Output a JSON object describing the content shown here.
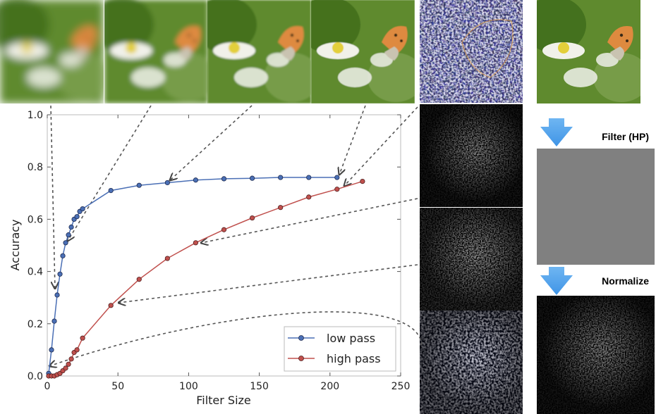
{
  "pipeline": {
    "step1_label": "Filter (HP)",
    "step2_label": "Normalize"
  },
  "chart_data": {
    "type": "line",
    "xlabel": "Filter Size",
    "ylabel": "Accuracy",
    "xlim": [
      0,
      250
    ],
    "ylim": [
      0.0,
      1.0
    ],
    "xticks": [
      "0",
      "50",
      "100",
      "150",
      "200",
      "250"
    ],
    "yticks": [
      "0.0",
      "0.2",
      "0.4",
      "0.6",
      "0.8",
      "1.0"
    ],
    "grid": false,
    "legend_position": "bottom-right",
    "series": [
      {
        "name": "low pass",
        "color": "#4a6fb5",
        "x": [
          1,
          3,
          5,
          7,
          9,
          11,
          13,
          15,
          17,
          19,
          21,
          23,
          25,
          45,
          65,
          85,
          105,
          125,
          145,
          165,
          185,
          205
        ],
        "y": [
          0.01,
          0.1,
          0.21,
          0.31,
          0.39,
          0.46,
          0.51,
          0.54,
          0.57,
          0.6,
          0.61,
          0.63,
          0.64,
          0.71,
          0.73,
          0.74,
          0.75,
          0.755,
          0.757,
          0.76,
          0.76,
          0.76
        ]
      },
      {
        "name": "high pass",
        "color": "#c0504d",
        "x": [
          1,
          3,
          5,
          7,
          9,
          11,
          13,
          15,
          17,
          19,
          21,
          25,
          45,
          65,
          85,
          105,
          125,
          145,
          165,
          185,
          205,
          223
        ],
        "y": [
          0.0,
          0.0,
          0.0,
          0.005,
          0.01,
          0.02,
          0.03,
          0.045,
          0.065,
          0.09,
          0.1,
          0.145,
          0.27,
          0.37,
          0.45,
          0.51,
          0.56,
          0.605,
          0.645,
          0.685,
          0.715,
          0.745
        ]
      }
    ]
  }
}
